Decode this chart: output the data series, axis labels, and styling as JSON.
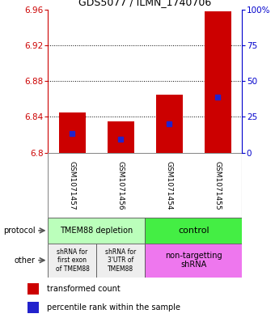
{
  "title": "GDS5077 / ILMN_1740706",
  "samples": [
    "GSM1071457",
    "GSM1071456",
    "GSM1071454",
    "GSM1071455"
  ],
  "bar_values": [
    6.845,
    6.835,
    6.865,
    6.958
  ],
  "bar_bottom": 6.8,
  "percentile_values": [
    6.821,
    6.815,
    6.832,
    6.862
  ],
  "ylim": [
    6.8,
    6.96
  ],
  "yticks_left": [
    6.8,
    6.84,
    6.88,
    6.92,
    6.96
  ],
  "yticks_right": [
    0,
    25,
    50,
    75,
    100
  ],
  "bar_color": "#cc0000",
  "percentile_color": "#2222cc",
  "protocol_labels": [
    "TMEM88 depletion",
    "control"
  ],
  "protocol_colors": [
    "#bbffbb",
    "#44ee44"
  ],
  "other_labels_left": [
    "shRNA for\nfirst exon\nof TMEM88",
    "shRNA for\n3'UTR of\nTMEM88"
  ],
  "other_label_right": "non-targetting\nshRNA",
  "other_colors_left": [
    "#eeeeee",
    "#eeeeee"
  ],
  "other_color_right": "#ee77ee",
  "sample_box_color": "#cccccc",
  "legend_red": "transformed count",
  "legend_blue": "percentile rank within the sample",
  "background_color": "#ffffff",
  "left_label_color": "#444444",
  "grid_color": "#000000",
  "bar_width": 0.55
}
